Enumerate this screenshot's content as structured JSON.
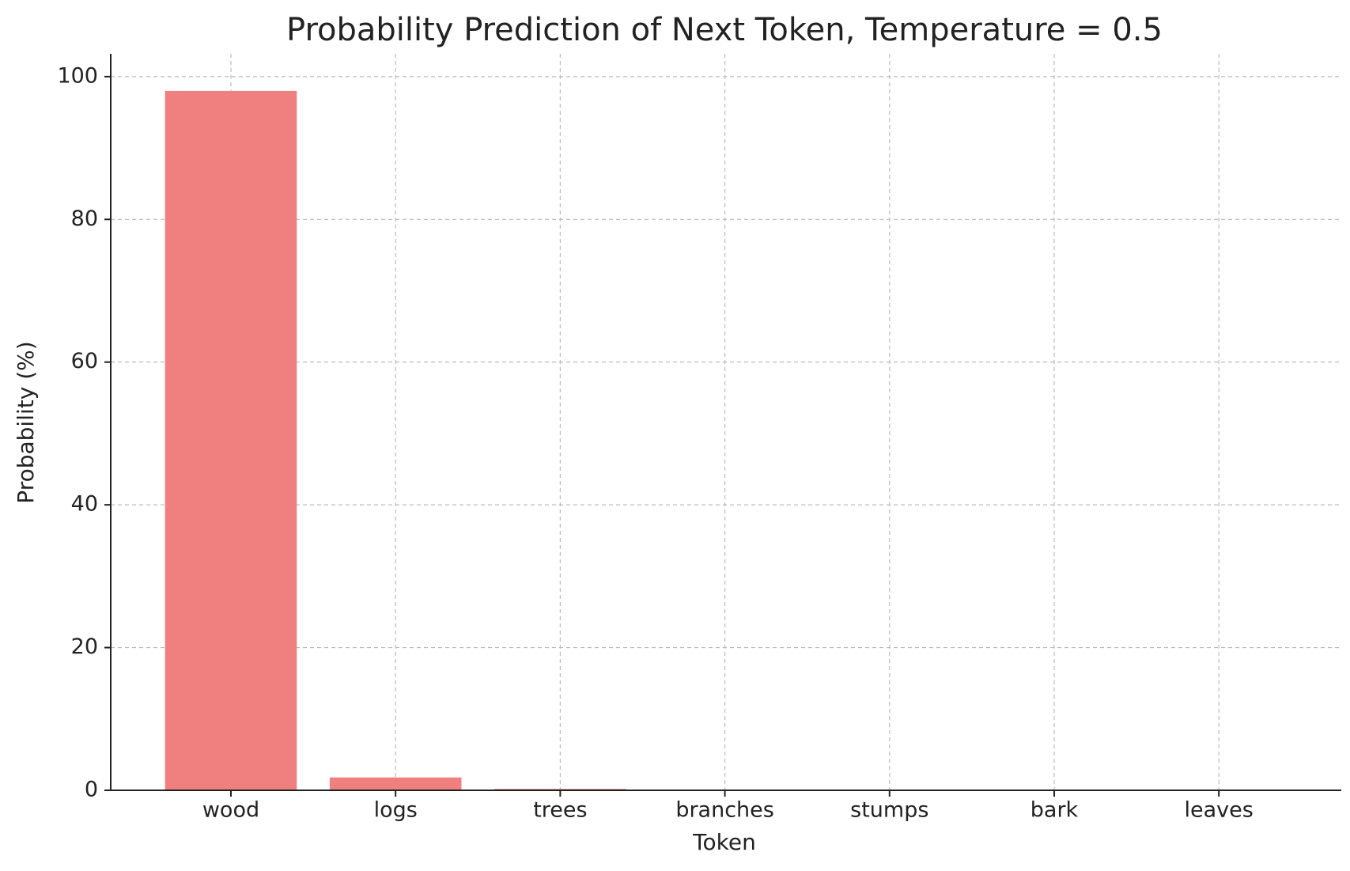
{
  "chart_data": {
    "type": "bar",
    "title": "Probability Prediction of Next Token, Temperature = 0.5",
    "x_label": "Token",
    "y_label": "Probability (%)",
    "categories": [
      "wood",
      "logs",
      "trees",
      "branches",
      "stumps",
      "bark",
      "leaves"
    ],
    "values": [
      98,
      1.8,
      0.2,
      0,
      0,
      0,
      0
    ],
    "color": "#f08080",
    "ylim": [
      0,
      103.2
    ],
    "yticks": [
      0,
      20,
      40,
      60,
      80,
      100
    ],
    "grid": true
  }
}
